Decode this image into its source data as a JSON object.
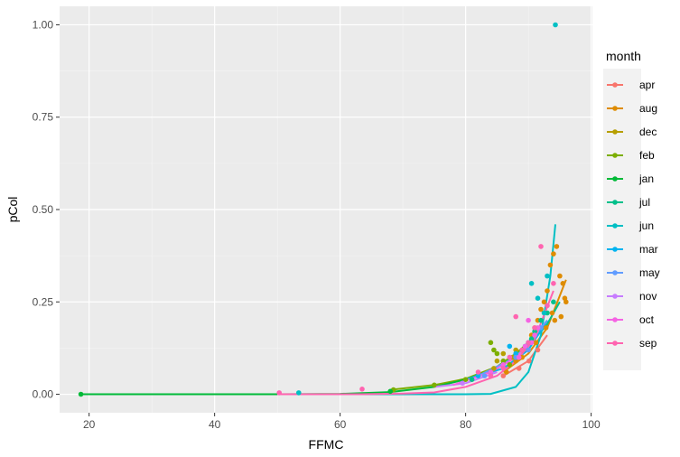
{
  "chart_data": {
    "type": "scatter",
    "title": "",
    "xlabel": "FFMC",
    "ylabel": "pCol",
    "xlim": [
      15.3,
      100.2
    ],
    "ylim": [
      -0.05,
      1.05
    ],
    "x_ticks": [
      20,
      40,
      60,
      80,
      100
    ],
    "x_tick_labels": [
      "20",
      "40",
      "60",
      "80",
      "100"
    ],
    "y_ticks": [
      0,
      0.25,
      0.5,
      0.75,
      1.0
    ],
    "y_tick_labels": [
      "0.00",
      "0.25",
      "0.50",
      "0.75",
      "1.00"
    ],
    "grid": true,
    "legend": {
      "title": "month",
      "position": "right",
      "entries": [
        "apr",
        "aug",
        "dec",
        "feb",
        "jan",
        "jul",
        "jun",
        "mar",
        "may",
        "nov",
        "oct",
        "sep"
      ]
    },
    "colors": {
      "apr": "#F8766D",
      "aug": "#DE8C00",
      "dec": "#B79F00",
      "feb": "#7CAE00",
      "jan": "#00BA38",
      "jul": "#00C08B",
      "jun": "#00BFC4",
      "mar": "#00B4F0",
      "may": "#619CFF",
      "nov": "#C77CFF",
      "oct": "#F564E3",
      "sep": "#FF64B0"
    },
    "series": [
      {
        "name": "apr",
        "curve": [
          [
            86.0,
            0.05
          ],
          [
            90.0,
            0.09
          ],
          [
            93.0,
            0.16
          ]
        ],
        "points": [
          [
            86.0,
            0.05
          ],
          [
            88.5,
            0.07
          ],
          [
            90.1,
            0.09
          ],
          [
            91.5,
            0.12
          ]
        ]
      },
      {
        "name": "aug",
        "curve": [
          [
            86.0,
            0.06
          ],
          [
            90.0,
            0.11
          ],
          [
            93.0,
            0.18
          ],
          [
            96.0,
            0.31
          ]
        ],
        "points": [
          [
            86.5,
            0.06
          ],
          [
            88,
            0.09
          ],
          [
            89,
            0.1
          ],
          [
            90,
            0.12
          ],
          [
            90.5,
            0.16
          ],
          [
            91,
            0.18
          ],
          [
            91.5,
            0.2
          ],
          [
            92,
            0.23
          ],
          [
            92.5,
            0.25
          ],
          [
            93,
            0.28
          ],
          [
            93.5,
            0.35
          ],
          [
            94,
            0.38
          ],
          [
            94.5,
            0.4
          ],
          [
            95,
            0.32
          ],
          [
            95.5,
            0.3
          ],
          [
            95.8,
            0.26
          ],
          [
            93.8,
            0.22
          ],
          [
            94.2,
            0.2
          ],
          [
            95.2,
            0.21
          ],
          [
            96,
            0.25
          ],
          [
            92.8,
            0.18
          ],
          [
            91.2,
            0.14
          ]
        ]
      },
      {
        "name": "dec",
        "curve": [
          [
            84.0,
            0.06
          ],
          [
            86.0,
            0.08
          ],
          [
            88.0,
            0.1
          ]
        ],
        "points": [
          [
            84.5,
            0.07
          ],
          [
            85,
            0.09
          ],
          [
            86,
            0.11
          ],
          [
            87.5,
            0.1
          ],
          [
            88,
            0.12
          ]
        ]
      },
      {
        "name": "feb",
        "curve": [
          [
            68.0,
            0.012
          ],
          [
            75.0,
            0.025
          ],
          [
            80.0,
            0.042
          ],
          [
            85.0,
            0.075
          ],
          [
            88.0,
            0.11
          ],
          [
            90.0,
            0.14
          ]
        ],
        "points": [
          [
            68.5,
            0.012
          ],
          [
            75,
            0.025
          ],
          [
            80,
            0.04
          ],
          [
            84,
            0.14
          ],
          [
            84.5,
            0.12
          ],
          [
            85,
            0.11
          ],
          [
            86,
            0.09
          ],
          [
            87,
            0.08
          ],
          [
            88,
            0.1
          ],
          [
            89,
            0.12
          ]
        ]
      },
      {
        "name": "jan",
        "curve": [
          [
            18.7,
            0.0
          ],
          [
            50.0,
            0.0
          ],
          [
            60.0,
            0.001
          ],
          [
            68.0,
            0.006
          ],
          [
            75.0,
            0.02
          ],
          [
            80.0,
            0.04
          ]
        ],
        "points": [
          [
            18.7,
            0.0
          ],
          [
            68,
            0.008
          ]
        ]
      },
      {
        "name": "jul",
        "curve": [
          [
            80.0,
            0.04
          ],
          [
            85.0,
            0.07
          ],
          [
            90.0,
            0.13
          ],
          [
            93.0,
            0.19
          ],
          [
            95.0,
            0.25
          ]
        ],
        "points": [
          [
            81,
            0.04
          ],
          [
            84,
            0.06
          ],
          [
            86,
            0.08
          ],
          [
            88,
            0.1
          ],
          [
            89.5,
            0.13
          ],
          [
            90.5,
            0.15
          ],
          [
            91,
            0.17
          ],
          [
            92,
            0.2
          ],
          [
            93,
            0.22
          ],
          [
            94,
            0.25
          ]
        ]
      },
      {
        "name": "jun",
        "curve": [
          [
            50.0,
            0.0
          ],
          [
            80.0,
            0.0
          ],
          [
            84.0,
            0.001
          ],
          [
            88.0,
            0.02
          ],
          [
            90.0,
            0.06
          ],
          [
            92.0,
            0.16
          ],
          [
            93.5,
            0.32
          ],
          [
            94.3,
            0.46
          ]
        ],
        "points": [
          [
            53.4,
            0.004
          ],
          [
            90.5,
            0.3
          ],
          [
            91.5,
            0.26
          ],
          [
            92.5,
            0.22
          ],
          [
            93,
            0.32
          ],
          [
            94.3,
            1.0
          ]
        ]
      },
      {
        "name": "mar",
        "curve": [
          [
            80.0,
            0.04
          ],
          [
            86.0,
            0.07
          ],
          [
            90.0,
            0.12
          ],
          [
            93.0,
            0.2
          ]
        ],
        "points": [
          [
            82,
            0.05
          ],
          [
            84,
            0.06
          ],
          [
            86,
            0.08
          ],
          [
            87,
            0.13
          ],
          [
            88,
            0.11
          ],
          [
            90,
            0.14
          ],
          [
            91,
            0.16
          ]
        ]
      },
      {
        "name": "may",
        "curve": [
          [
            82.0,
            0.05
          ],
          [
            88.0,
            0.1
          ],
          [
            93.0,
            0.2
          ]
        ],
        "points": [
          [
            83,
            0.05
          ],
          [
            88,
            0.1
          ],
          [
            90,
            0.12
          ],
          [
            92,
            0.18
          ]
        ]
      },
      {
        "name": "nov",
        "curve": [
          [
            75.0,
            0.02
          ],
          [
            80.0,
            0.03
          ],
          [
            85.0,
            0.06
          ]
        ],
        "points": [
          [
            79.5,
            0.03
          ]
        ]
      },
      {
        "name": "oct",
        "curve": [
          [
            78.0,
            0.025
          ],
          [
            84.0,
            0.06
          ],
          [
            88.0,
            0.1
          ],
          [
            91.0,
            0.15
          ]
        ],
        "points": [
          [
            84,
            0.06
          ],
          [
            86,
            0.08
          ],
          [
            88.5,
            0.1
          ],
          [
            89.5,
            0.13
          ],
          [
            90.5,
            0.14
          ],
          [
            91,
            0.16
          ],
          [
            90,
            0.2
          ],
          [
            91.5,
            0.18
          ]
        ]
      },
      {
        "name": "sep",
        "curve": [
          [
            50.0,
            0.0
          ],
          [
            63.5,
            0.0
          ],
          [
            70.0,
            0.002
          ],
          [
            75.0,
            0.005
          ],
          [
            80.0,
            0.02
          ],
          [
            85.0,
            0.05
          ],
          [
            88.0,
            0.09
          ],
          [
            91.0,
            0.15
          ],
          [
            94.0,
            0.28
          ]
        ],
        "points": [
          [
            50.3,
            0.004
          ],
          [
            63.5,
            0.014
          ],
          [
            82,
            0.06
          ],
          [
            84,
            0.05
          ],
          [
            86,
            0.07
          ],
          [
            87,
            0.1
          ],
          [
            88,
            0.21
          ],
          [
            89,
            0.12
          ],
          [
            90,
            0.14
          ],
          [
            91,
            0.18
          ],
          [
            92,
            0.4
          ],
          [
            93,
            0.24
          ],
          [
            94,
            0.3
          ]
        ]
      }
    ]
  }
}
